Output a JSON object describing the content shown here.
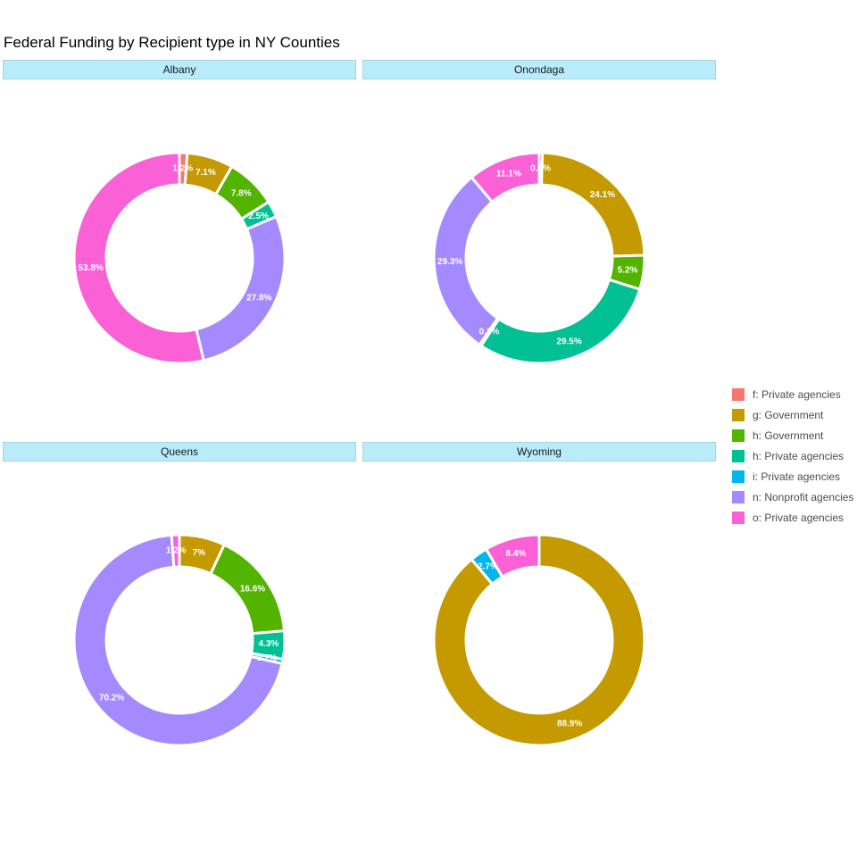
{
  "chart_data": {
    "type": "pie",
    "title": "Federal Funding by Recipient type in NY Counties",
    "legend_position": "right",
    "categories": [
      {
        "key": "f",
        "label": "f: Private agencies",
        "color": "#f8766d"
      },
      {
        "key": "g",
        "label": "g: Government",
        "color": "#c49a00"
      },
      {
        "key": "h_gov",
        "label": "h: Government",
        "color": "#53b400"
      },
      {
        "key": "h_priv",
        "label": "h: Private agencies",
        "color": "#00c094"
      },
      {
        "key": "i",
        "label": "i: Private agencies",
        "color": "#00b6eb"
      },
      {
        "key": "n",
        "label": "n: Nonprofit agencies",
        "color": "#a58aff"
      },
      {
        "key": "o",
        "label": "o: Private agencies",
        "color": "#fb61d7"
      }
    ],
    "panels": [
      {
        "name": "Albany",
        "slices": [
          {
            "cat": "f",
            "value": 1.2,
            "label": "1.2%"
          },
          {
            "cat": "g",
            "value": 7.1,
            "label": "7.1%"
          },
          {
            "cat": "h_gov",
            "value": 7.8,
            "label": "7.8%"
          },
          {
            "cat": "h_priv",
            "value": 2.5,
            "label": "2.5%"
          },
          {
            "cat": "n",
            "value": 27.8,
            "label": "27.8%"
          },
          {
            "cat": "o",
            "value": 53.8,
            "label": "53.8%"
          }
        ]
      },
      {
        "name": "Onondaga",
        "slices": [
          {
            "cat": "f",
            "value": 0.5,
            "label": "0.5%"
          },
          {
            "cat": "g",
            "value": 24.1,
            "label": "24.1%"
          },
          {
            "cat": "h_gov",
            "value": 5.2,
            "label": "5.2%"
          },
          {
            "cat": "h_priv",
            "value": 29.5,
            "label": "29.5%"
          },
          {
            "cat": "i",
            "value": 0.3,
            "label": "0.3%"
          },
          {
            "cat": "n",
            "value": 29.3,
            "label": "29.3%"
          },
          {
            "cat": "o",
            "value": 11.1,
            "label": "11.1%"
          }
        ]
      },
      {
        "name": "Queens",
        "slices": [
          {
            "cat": "g",
            "value": 7.0,
            "label": "7%"
          },
          {
            "cat": "h_gov",
            "value": 16.6,
            "label": "16.6%"
          },
          {
            "cat": "h_priv",
            "value": 4.3,
            "label": "4.3%"
          },
          {
            "cat": "i",
            "value": 0.7,
            "label": "0.7%"
          },
          {
            "cat": "n",
            "value": 70.2,
            "label": "70.2%"
          },
          {
            "cat": "o",
            "value": 1.2,
            "label": "1.2%"
          }
        ]
      },
      {
        "name": "Wyoming",
        "slices": [
          {
            "cat": "g",
            "value": 88.9,
            "label": "88.9%"
          },
          {
            "cat": "i",
            "value": 2.7,
            "label": "2.7%"
          },
          {
            "cat": "o",
            "value": 8.4,
            "label": "8.4%"
          }
        ]
      }
    ]
  }
}
